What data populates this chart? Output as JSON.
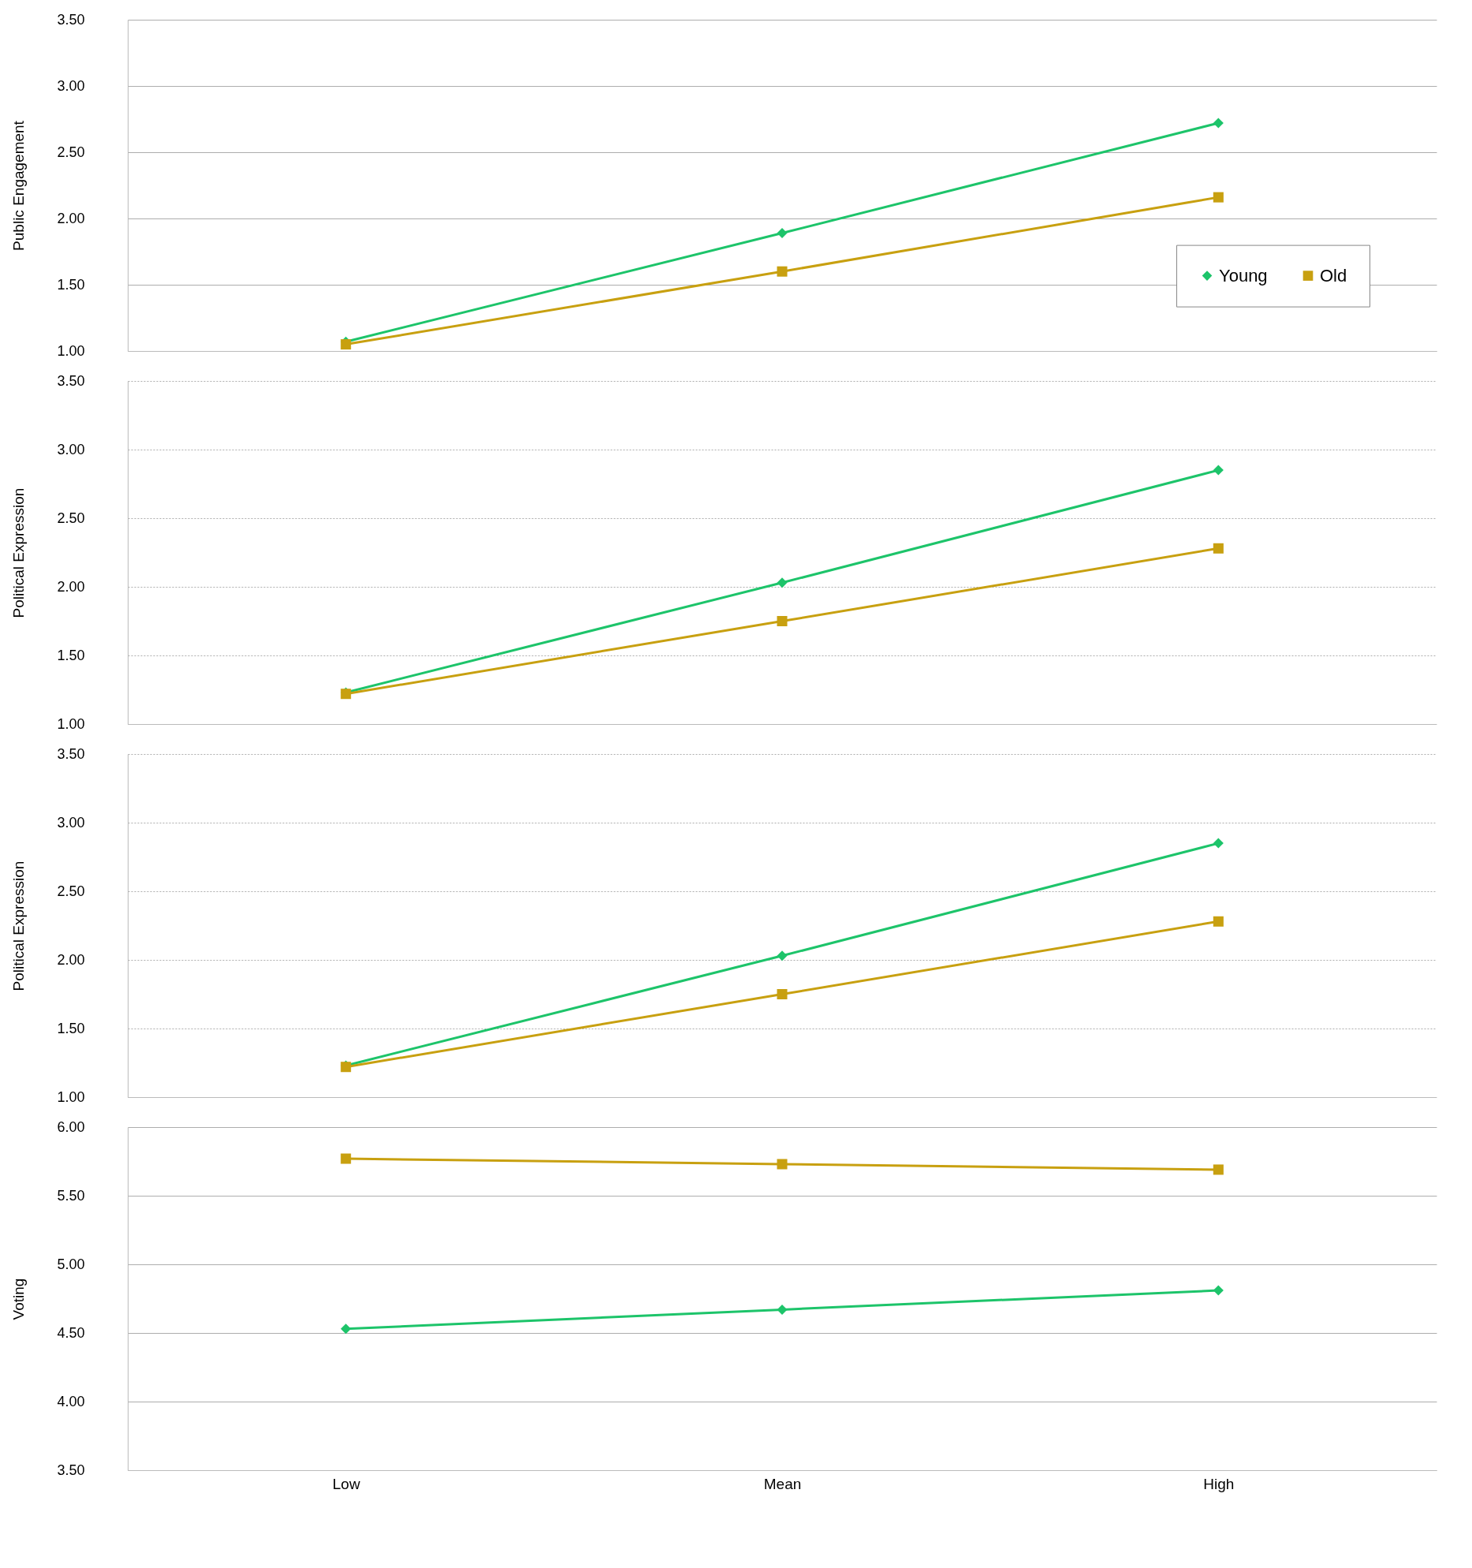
{
  "chart_data": [
    {
      "type": "line",
      "ylabel": "Public Engagement",
      "categories": [
        null,
        null,
        null
      ],
      "series": [
        {
          "name": "Young",
          "color": "#1dc46a",
          "marker": "diamond",
          "values": [
            1.07,
            1.89,
            2.72
          ]
        },
        {
          "name": "Old",
          "color": "#c8a010",
          "marker": "square",
          "values": [
            1.05,
            1.6,
            2.16
          ]
        }
      ],
      "ylim": [
        1,
        3.5
      ],
      "yticks": [
        {
          "value": 1,
          "label": "1.00"
        },
        {
          "value": 1.5,
          "label": "1.50"
        },
        {
          "value": 2,
          "label": "2.00"
        },
        {
          "value": 2.5,
          "label": "2.50"
        },
        {
          "value": 3,
          "label": "3.00"
        },
        {
          "value": 3.5,
          "label": "3.50"
        }
      ],
      "grid": "y",
      "legend": "right",
      "tick_labels": "y"
    },
    {
      "type": "line",
      "ylabel": "Political Expression",
      "categories": [
        null,
        null,
        null
      ],
      "series": [
        {
          "color": "#1dc46a",
          "marker": "diamond",
          "values": [
            1.23,
            2.03,
            2.85
          ]
        },
        {
          "color": "#c8a010",
          "marker": "square",
          "values": [
            1.22,
            1.75,
            2.28
          ]
        }
      ],
      "ylim": [
        1,
        3.5
      ],
      "yticks": [
        {
          "value": 1,
          "label": "1.00"
        },
        {
          "value": 1.5,
          "label": "1.50"
        },
        {
          "value": 2,
          "label": "2.00"
        },
        {
          "value": 2.5,
          "label": "2.50"
        },
        {
          "value": 3,
          "label": "3.00"
        },
        {
          "value": 3.5,
          "label": "3.50"
        }
      ],
      "grid": "y",
      "tick_labels": "y"
    },
    {
      "type": "line",
      "ylabel": "Political Expression",
      "categories": [
        null,
        null,
        null
      ],
      "series": [
        {
          "color": "#1dc46a",
          "marker": "diamond",
          "values": [
            1.23,
            2.03,
            2.85
          ]
        },
        {
          "color": "#c8a010",
          "marker": "square",
          "values": [
            1.22,
            1.75,
            2.28
          ]
        }
      ],
      "ylim": [
        1,
        3.5
      ],
      "yticks": [
        {
          "value": 1,
          "label": "1.00"
        },
        {
          "value": 1.5,
          "label": "1.50"
        },
        {
          "value": 2,
          "label": "2.00"
        },
        {
          "value": 2.5,
          "label": "2.50"
        },
        {
          "value": 3,
          "label": "3.00"
        },
        {
          "value": 3.5,
          "label": "3.50"
        }
      ],
      "grid": "y",
      "tick_labels": "y"
    },
    {
      "type": "line",
      "ylabel": "Voting",
      "categories": [
        "Low",
        "Mean",
        "High"
      ],
      "series": [
        {
          "color": "#c8a010",
          "marker": "square",
          "values": [
            5.77,
            5.73,
            5.69
          ]
        },
        {
          "color": "#1dc46a",
          "marker": "diamond",
          "values": [
            4.53,
            4.67,
            4.81
          ]
        }
      ],
      "ylim": [
        3.5,
        6
      ],
      "yticks": [
        {
          "value": 3.5,
          "label": "3.50"
        },
        {
          "value": 4,
          "label": "4.00"
        },
        {
          "value": 4.5,
          "label": "4.50"
        },
        {
          "value": 5,
          "label": "5.00"
        },
        {
          "value": 5.5,
          "label": "5.50"
        },
        {
          "value": 6,
          "label": "6.00"
        }
      ],
      "grid": "y"
    }
  ]
}
